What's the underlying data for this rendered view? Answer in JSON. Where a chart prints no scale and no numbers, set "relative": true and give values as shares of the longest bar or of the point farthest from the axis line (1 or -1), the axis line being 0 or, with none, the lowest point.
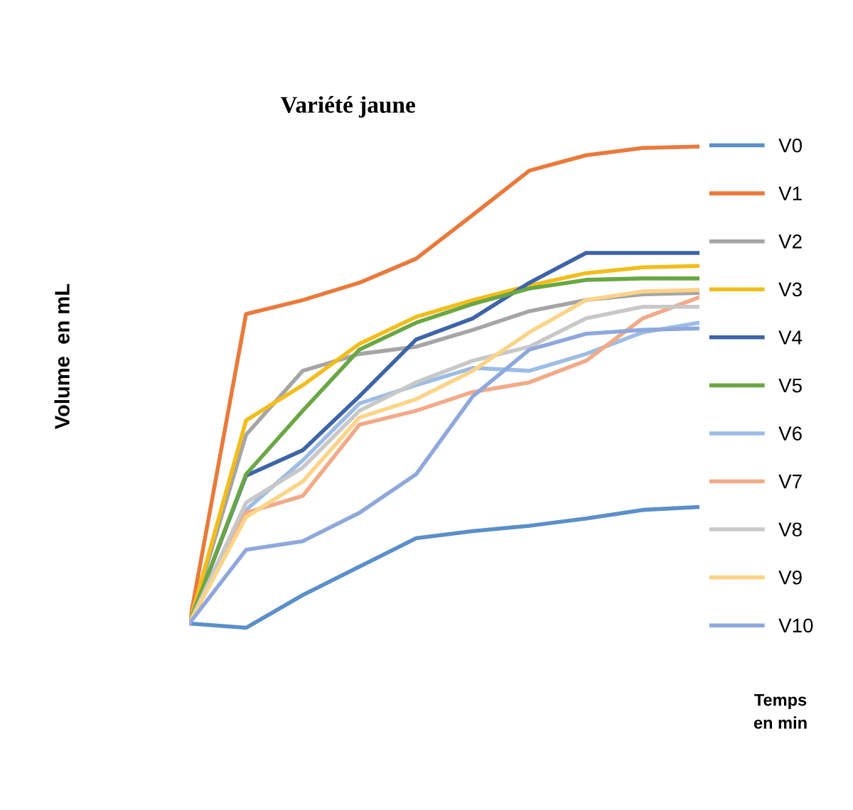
{
  "chart_data": {
    "type": "line",
    "title": "Variété jaune",
    "ylabel": "Volume  en mL",
    "xlabel": "Temps\nen min",
    "relative": true,
    "legend": "right",
    "grid": false,
    "marker": "none",
    "line_style": "solid",
    "categories": [
      null,
      null,
      null,
      null,
      null,
      null,
      null,
      null,
      null,
      null
    ],
    "series": [
      {
        "name": "V0",
        "color": "#5b8fc9",
        "values": [
          0.009,
          0,
          0.068,
          0.127,
          0.186,
          0.201,
          0.212,
          0.227,
          0.245,
          0.251
        ]
      },
      {
        "name": "V1",
        "color": "#e97a3c",
        "values": [
          0.009,
          0.652,
          0.681,
          0.717,
          0.767,
          0.858,
          0.95,
          0.982,
          0.997,
          1
        ]
      },
      {
        "name": "V2",
        "color": "#a5a5a5",
        "values": [
          0.009,
          0.401,
          0.534,
          0.569,
          0.584,
          0.619,
          0.658,
          0.681,
          0.693,
          0.696
        ]
      },
      {
        "name": "V3",
        "color": "#f2bd1c",
        "values": [
          0.009,
          0.431,
          0.504,
          0.59,
          0.646,
          0.681,
          0.711,
          0.737,
          0.749,
          0.752
        ]
      },
      {
        "name": "V4",
        "color": "#3e64a8",
        "values": [
          0.009,
          0.316,
          0.369,
          0.481,
          0.599,
          0.643,
          0.717,
          0.779,
          0.779,
          0.779
        ]
      },
      {
        "name": "V5",
        "color": "#6aa744",
        "values": [
          0.009,
          0.319,
          0.451,
          0.578,
          0.634,
          0.673,
          0.705,
          0.723,
          0.726,
          0.726
        ]
      },
      {
        "name": "V6",
        "color": "#9dbde6",
        "values": [
          0.009,
          0.245,
          0.348,
          0.466,
          0.504,
          0.54,
          0.534,
          0.569,
          0.614,
          0.634
        ]
      },
      {
        "name": "V7",
        "color": "#f2aa88",
        "values": [
          0.009,
          0.239,
          0.274,
          0.422,
          0.451,
          0.49,
          0.51,
          0.555,
          0.643,
          0.687
        ]
      },
      {
        "name": "V8",
        "color": "#c8c8c8",
        "values": [
          0.009,
          0.26,
          0.333,
          0.451,
          0.51,
          0.555,
          0.584,
          0.643,
          0.667,
          0.667
        ]
      },
      {
        "name": "V9",
        "color": "#fbd488",
        "values": [
          0.009,
          0.23,
          0.304,
          0.437,
          0.475,
          0.534,
          0.614,
          0.681,
          0.699,
          0.702
        ]
      },
      {
        "name": "V10",
        "color": "#8fa8dc",
        "values": [
          0.009,
          0.162,
          0.18,
          0.239,
          0.319,
          0.481,
          0.578,
          0.611,
          0.619,
          0.622
        ]
      }
    ]
  }
}
